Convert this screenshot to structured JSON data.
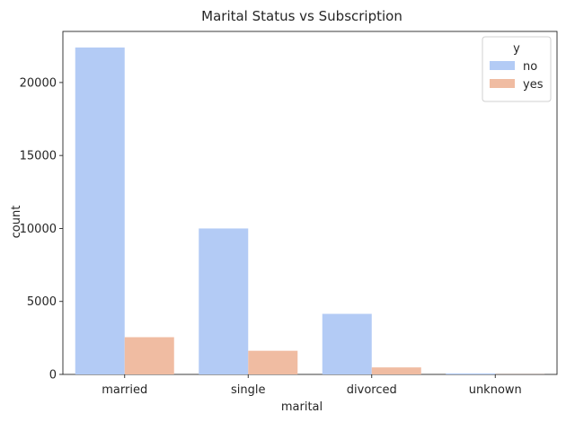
{
  "chart_data": {
    "type": "bar",
    "title": "Marital Status vs Subscription",
    "xlabel": "marital",
    "ylabel": "count",
    "categories": [
      "married",
      "single",
      "divorced",
      "unknown"
    ],
    "series": [
      {
        "name": "no",
        "values": [
          22400,
          10000,
          4150,
          70
        ],
        "color": "#b3cbf5"
      },
      {
        "name": "yes",
        "values": [
          2550,
          1620,
          480,
          10
        ],
        "color": "#f0bca2"
      }
    ],
    "ylim": [
      0,
      23500
    ],
    "yticks": [
      0,
      5000,
      10000,
      15000,
      20000
    ],
    "legend": {
      "title": "y",
      "placement": "top-right"
    },
    "grid": false
  }
}
